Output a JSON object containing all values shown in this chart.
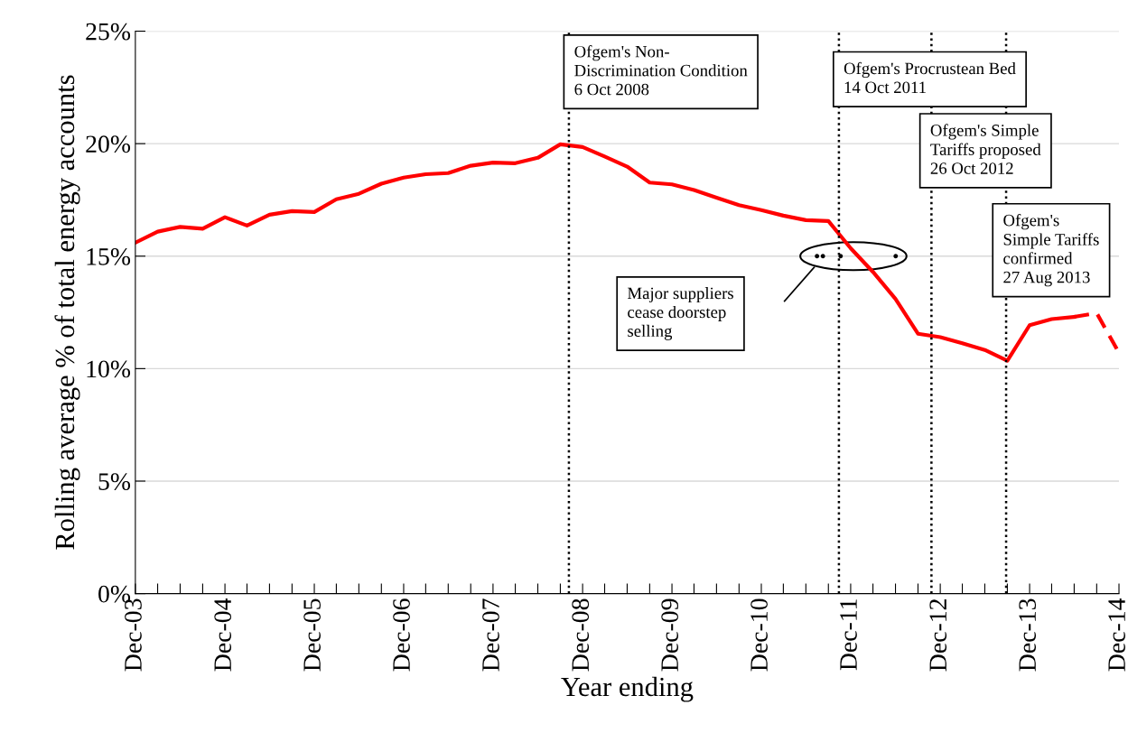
{
  "chart_data": {
    "type": "line",
    "xlabel": "Year ending",
    "ylabel": "Rolling average % of total energy accounts",
    "x": [
      "2003-12",
      "2004-03",
      "2004-06",
      "2004-09",
      "2004-12",
      "2005-03",
      "2005-06",
      "2005-09",
      "2005-12",
      "2006-03",
      "2006-06",
      "2006-09",
      "2006-12",
      "2007-03",
      "2007-06",
      "2007-09",
      "2007-12",
      "2008-03",
      "2008-06",
      "2008-09",
      "2008-12",
      "2009-03",
      "2009-06",
      "2009-09",
      "2009-12",
      "2010-03",
      "2010-06",
      "2010-09",
      "2010-12",
      "2011-03",
      "2011-06",
      "2011-09",
      "2011-12",
      "2012-03",
      "2012-06",
      "2012-09",
      "2012-12",
      "2013-03",
      "2013-06",
      "2013-09",
      "2013-12",
      "2014-03",
      "2014-06"
    ],
    "series": [
      {
        "color": "#ff0000",
        "line_style": "solid",
        "values": [
          15.6,
          16.09,
          16.3,
          16.22,
          16.73,
          16.36,
          16.84,
          17.0,
          16.96,
          17.53,
          17.77,
          18.22,
          18.49,
          18.64,
          18.69,
          19.02,
          19.16,
          19.13,
          19.37,
          19.97,
          19.85,
          19.43,
          18.98,
          18.27,
          18.19,
          17.94,
          17.6,
          17.27,
          17.05,
          16.8,
          16.6,
          16.56,
          15.35,
          14.3,
          13.1,
          11.55,
          11.4,
          11.13,
          10.83,
          10.35,
          11.93,
          12.2,
          12.3
        ]
      },
      {
        "color": "#ff0000",
        "line_style": "dashed",
        "x": [
          "2014-06",
          "2014-09",
          "2014-12"
        ],
        "values": [
          12.3,
          12.47,
          10.7
        ]
      }
    ],
    "xlim": [
      "2003-12",
      "2014-12"
    ],
    "xticks": [
      {
        "value": "2003-12",
        "label": "Dec-03"
      },
      {
        "value": "2004-03",
        "label": null
      },
      {
        "value": "2004-06",
        "label": null
      },
      {
        "value": "2004-09",
        "label": null
      },
      {
        "value": "2004-12",
        "label": "Dec-04"
      },
      {
        "value": "2005-03",
        "label": null
      },
      {
        "value": "2005-06",
        "label": null
      },
      {
        "value": "2005-09",
        "label": null
      },
      {
        "value": "2005-12",
        "label": "Dec-05"
      },
      {
        "value": "2006-03",
        "label": null
      },
      {
        "value": "2006-06",
        "label": null
      },
      {
        "value": "2006-09",
        "label": null
      },
      {
        "value": "2006-12",
        "label": "Dec-06"
      },
      {
        "value": "2007-03",
        "label": null
      },
      {
        "value": "2007-06",
        "label": null
      },
      {
        "value": "2007-09",
        "label": null
      },
      {
        "value": "2007-12",
        "label": "Dec-07"
      },
      {
        "value": "2008-03",
        "label": null
      },
      {
        "value": "2008-06",
        "label": null
      },
      {
        "value": "2008-09",
        "label": null
      },
      {
        "value": "2008-12",
        "label": "Dec-08"
      },
      {
        "value": "2009-03",
        "label": null
      },
      {
        "value": "2009-06",
        "label": null
      },
      {
        "value": "2009-09",
        "label": null
      },
      {
        "value": "2009-12",
        "label": "Dec-09"
      },
      {
        "value": "2010-03",
        "label": null
      },
      {
        "value": "2010-06",
        "label": null
      },
      {
        "value": "2010-09",
        "label": null
      },
      {
        "value": "2010-12",
        "label": "Dec-10"
      },
      {
        "value": "2011-03",
        "label": null
      },
      {
        "value": "2011-06",
        "label": null
      },
      {
        "value": "2011-09",
        "label": null
      },
      {
        "value": "2011-12",
        "label": "Dec-11"
      },
      {
        "value": "2012-03",
        "label": null
      },
      {
        "value": "2012-06",
        "label": null
      },
      {
        "value": "2012-09",
        "label": null
      },
      {
        "value": "2012-12",
        "label": "Dec-12"
      },
      {
        "value": "2013-03",
        "label": null
      },
      {
        "value": "2013-06",
        "label": null
      },
      {
        "value": "2013-09",
        "label": null
      },
      {
        "value": "2013-12",
        "label": "Dec-13"
      },
      {
        "value": "2014-03",
        "label": null
      },
      {
        "value": "2014-06",
        "label": null
      },
      {
        "value": "2014-09",
        "label": null
      },
      {
        "value": "2014-12",
        "label": "Dec-14"
      }
    ],
    "ylim": [
      0,
      25
    ],
    "yticks": [
      {
        "value": 0,
        "label": "0%"
      },
      {
        "value": 5,
        "label": "5%"
      },
      {
        "value": 10,
        "label": "10%"
      },
      {
        "value": 15,
        "label": "15%"
      },
      {
        "value": 20,
        "label": "20%"
      },
      {
        "value": 25,
        "label": "25%"
      }
    ],
    "grid": "y",
    "marker": "none",
    "ref_lines": [
      {
        "axis": "x",
        "value": "2008-10-06",
        "label": "Ofgem's Non-\nDiscrimination Condition\n6 Oct 2008",
        "color": "#000000",
        "line_style": "dotted"
      },
      {
        "axis": "x",
        "value": "2011-10-14",
        "label": "Ofgem's Procrustean Bed\n14 Oct 2011",
        "color": "#000000",
        "line_style": "dotted"
      },
      {
        "axis": "x",
        "value": "2012-10-26",
        "label": "Ofgem's Simple\nTariffs proposed\n26 Oct 2012",
        "color": "#000000",
        "line_style": "dotted"
      },
      {
        "axis": "x",
        "value": "2013-08-27",
        "label": "Ofgem's\nSimple Tariffs\nconfirmed\n27 Aug 2013",
        "color": "#000000",
        "line_style": "dotted"
      }
    ],
    "annotations": [
      "Major suppliers\ncease doorstep\nselling"
    ]
  }
}
